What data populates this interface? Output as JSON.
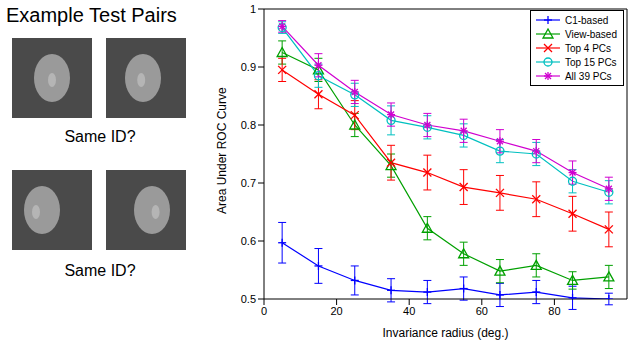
{
  "left_panel": {
    "title": "Example Test Pairs",
    "captions": [
      "Same ID?",
      "Same ID?"
    ]
  },
  "chart_data": {
    "type": "line",
    "x_label": "Invariance radius (deg.)",
    "y_label": "Area Under ROC Curve",
    "x": [
      5,
      15,
      25,
      35,
      45,
      55,
      65,
      75,
      85,
      95
    ],
    "xlim": [
      0,
      100
    ],
    "xticks": [
      0,
      20,
      40,
      60,
      80
    ],
    "ylim": [
      0.5,
      1
    ],
    "yticks": [
      0.5,
      0.6,
      0.7,
      0.8,
      0.9,
      1
    ],
    "grid": false,
    "legend": "top-right",
    "series": [
      {
        "name": "C1-based",
        "color": "#0000ff",
        "marker": "plus",
        "values": [
          0.597,
          0.557,
          0.532,
          0.515,
          0.512,
          0.518,
          0.507,
          0.512,
          0.502,
          0.5
        ],
        "errors": [
          0.035,
          0.03,
          0.025,
          0.02,
          0.02,
          0.02,
          0.02,
          0.02,
          0.02,
          0.01
        ]
      },
      {
        "name": "View-based",
        "color": "#00a000",
        "marker": "triangle",
        "values": [
          0.925,
          0.895,
          0.8,
          0.73,
          0.622,
          0.578,
          0.548,
          0.558,
          0.532,
          0.538
        ],
        "errors": [
          0.02,
          0.02,
          0.02,
          0.02,
          0.02,
          0.02,
          0.02,
          0.02,
          0.015,
          0.02
        ]
      },
      {
        "name": "Top 4 PCs",
        "color": "#ff0000",
        "marker": "x",
        "values": [
          0.895,
          0.853,
          0.817,
          0.735,
          0.718,
          0.693,
          0.683,
          0.672,
          0.647,
          0.62
        ],
        "errors": [
          0.02,
          0.025,
          0.025,
          0.03,
          0.03,
          0.03,
          0.03,
          0.03,
          0.03,
          0.03
        ]
      },
      {
        "name": "Top 15 PCs",
        "color": "#00c0c0",
        "marker": "circle",
        "values": [
          0.968,
          0.885,
          0.852,
          0.808,
          0.796,
          0.782,
          0.755,
          0.75,
          0.703,
          0.684
        ],
        "errors": [
          0.01,
          0.02,
          0.02,
          0.025,
          0.02,
          0.02,
          0.02,
          0.02,
          0.02,
          0.02
        ]
      },
      {
        "name": "All 39 PCs",
        "color": "#d000d0",
        "marker": "star",
        "values": [
          0.97,
          0.903,
          0.857,
          0.818,
          0.8,
          0.79,
          0.772,
          0.755,
          0.718,
          0.69
        ],
        "errors": [
          0.01,
          0.02,
          0.02,
          0.02,
          0.02,
          0.02,
          0.02,
          0.02,
          0.02,
          0.02
        ]
      }
    ]
  }
}
